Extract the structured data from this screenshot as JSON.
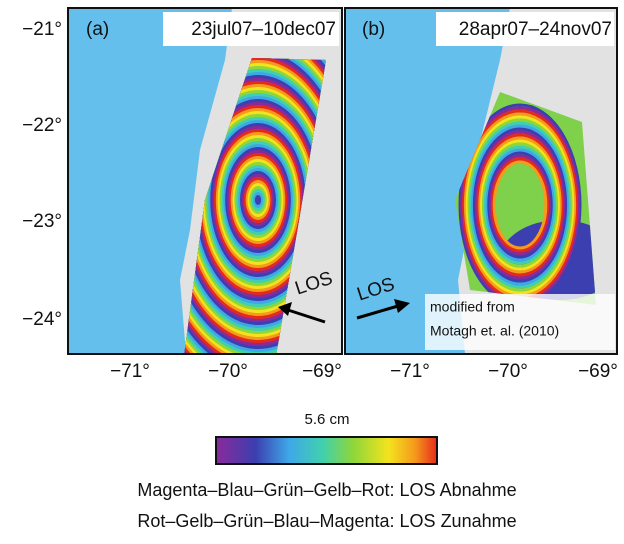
{
  "panels": [
    {
      "label": "(a)",
      "title": "23jul07–10dec07",
      "annotation": "LOS"
    },
    {
      "label": "(b)",
      "title": "28apr07–24nov07",
      "annotation": "LOS",
      "note": [
        "modified from",
        "Motagh et. al. (2010)"
      ]
    }
  ],
  "y_ticks": [
    "−21°",
    "−22°",
    "−23°",
    "−24°"
  ],
  "x_ticks": [
    "−71°",
    "−70°",
    "−69°"
  ],
  "colorbar": {
    "label": "5.6 cm"
  },
  "caption": [
    "Magenta–Blau–Grün–Gelb–Rot: LOS Abnahme",
    "Rot–Gelb–Grün–Blau–Magenta: LOS Zunahme"
  ]
}
